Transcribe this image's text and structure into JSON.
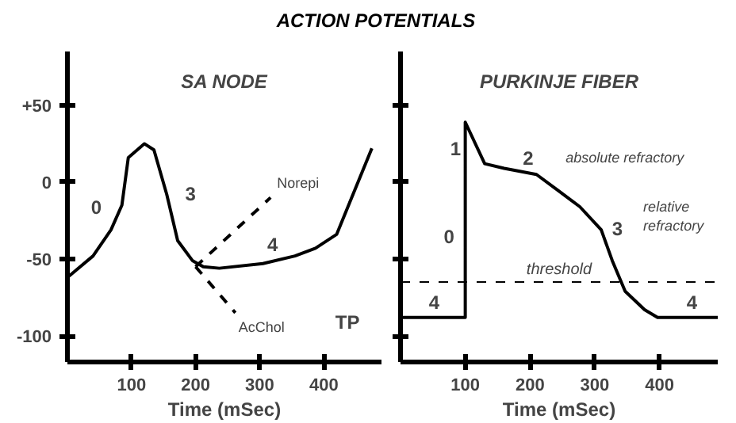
{
  "chart_data": [
    {
      "type": "line",
      "title": "ACTION POTENTIALS",
      "subtitle": "SA NODE",
      "xlabel": "Time (mSec)",
      "xlim": [
        0,
        490
      ],
      "ylim": [
        -117,
        85
      ],
      "xticks": [
        100,
        200,
        300,
        400
      ],
      "yticks": [
        {
          "value": 50,
          "label": "+50"
        },
        0,
        -50,
        -100
      ],
      "grid": false,
      "series": [
        {
          "color": "#000000",
          "x": [
            0,
            40,
            68,
            85,
            95,
            120,
            135,
            155,
            172,
            195,
            212,
            237,
            305,
            355,
            387,
            420,
            475
          ],
          "values": [
            -62,
            -48,
            -31,
            -15,
            16,
            25,
            21,
            -8,
            -38,
            -51,
            -55,
            -56,
            -53,
            -48,
            -43,
            -34,
            22
          ]
        },
        {
          "name": "Norepi",
          "color": "#000000",
          "line_style": "dashed",
          "x": [
            200,
            317
          ],
          "values": [
            -55,
            -10
          ]
        },
        {
          "name": "AcChol",
          "color": "#000000",
          "line_style": "dashed",
          "x": [
            200,
            262
          ],
          "values": [
            -55,
            -85
          ]
        }
      ],
      "annotations": [
        "0",
        "3",
        "4",
        "TP"
      ]
    },
    {
      "type": "line",
      "subtitle": "PURKINJE FIBER",
      "xlabel": "Time (mSec)",
      "xlim": [
        0,
        490
      ],
      "ylim": [
        -117,
        85
      ],
      "xticks": [
        100,
        200,
        300,
        400
      ],
      "yticks": [
        {
          "value": 50,
          "label": null
        },
        {
          "value": 0,
          "label": null
        },
        {
          "value": -50,
          "label": null
        },
        {
          "value": -100,
          "label": null
        }
      ],
      "grid": false,
      "tick_labels": "x",
      "series": [
        {
          "color": "#000000",
          "x": [
            0,
            100,
            100,
            130,
            160,
            210,
            242,
            277,
            310,
            327,
            347,
            377,
            397,
            490
          ],
          "values": [
            -88,
            -88,
            39,
            12,
            9,
            5,
            -5,
            -16,
            -31,
            -51,
            -71,
            -83,
            -88,
            -88
          ]
        }
      ],
      "ref_lines": [
        {
          "axis": "y",
          "value": -65,
          "label": "threshold",
          "line_style": "dashed",
          "color": "#000000"
        }
      ],
      "annotations": [
        "1",
        "2",
        "absolute refractory",
        "0",
        "3",
        "relative refractory",
        "4",
        "4"
      ]
    }
  ]
}
